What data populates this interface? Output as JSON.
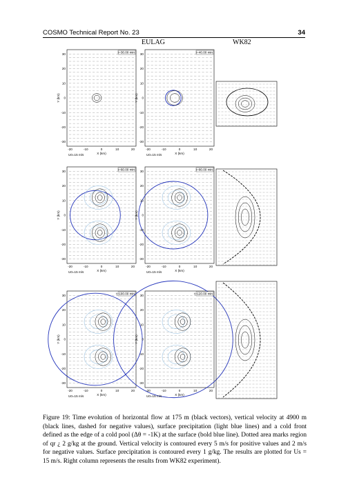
{
  "header": {
    "title": "COSMO Technical Report No. 23",
    "page": "34"
  },
  "columns": {
    "left": "EULAG",
    "right": "WK82"
  },
  "axes": {
    "ylabel": "Y (km)",
    "xlabel": "X (km)",
    "scale_label": "U0=15 m/s",
    "yticks": [
      30,
      20,
      10,
      0,
      -10,
      -20,
      -30
    ],
    "xticks": [
      -20,
      -10,
      0,
      10,
      20
    ]
  },
  "panels": [
    {
      "time": "t=30.00 min"
    },
    {
      "time": "t=40.00 min"
    },
    {
      "time": "t=60.00 min"
    },
    {
      "time": "t=80.00 min"
    },
    {
      "time": "t=100.00 min"
    },
    {
      "time": "t=120.00 min"
    }
  ],
  "caption": "Figure 19: Time evolution of horizontal flow at 175 m (black vectors), vertical velocity at 4900 m (black lines, dashed for negative values), surface precipitation (light blue lines) and a cold front defined as the edge of a cold pool (Δθ = -1K) at the surface (bold blue line). Dotted area marks region of qr ¿ 2 g/kg at the ground. Vertical velocity is contoured every 5 m/s for positive values and 2 m/s for negative values. Surface precipitation is contoured every 1 g/kg. The results are plotted for Us = 15 m/s. Right column represents the results from WK82 experiment)."
}
